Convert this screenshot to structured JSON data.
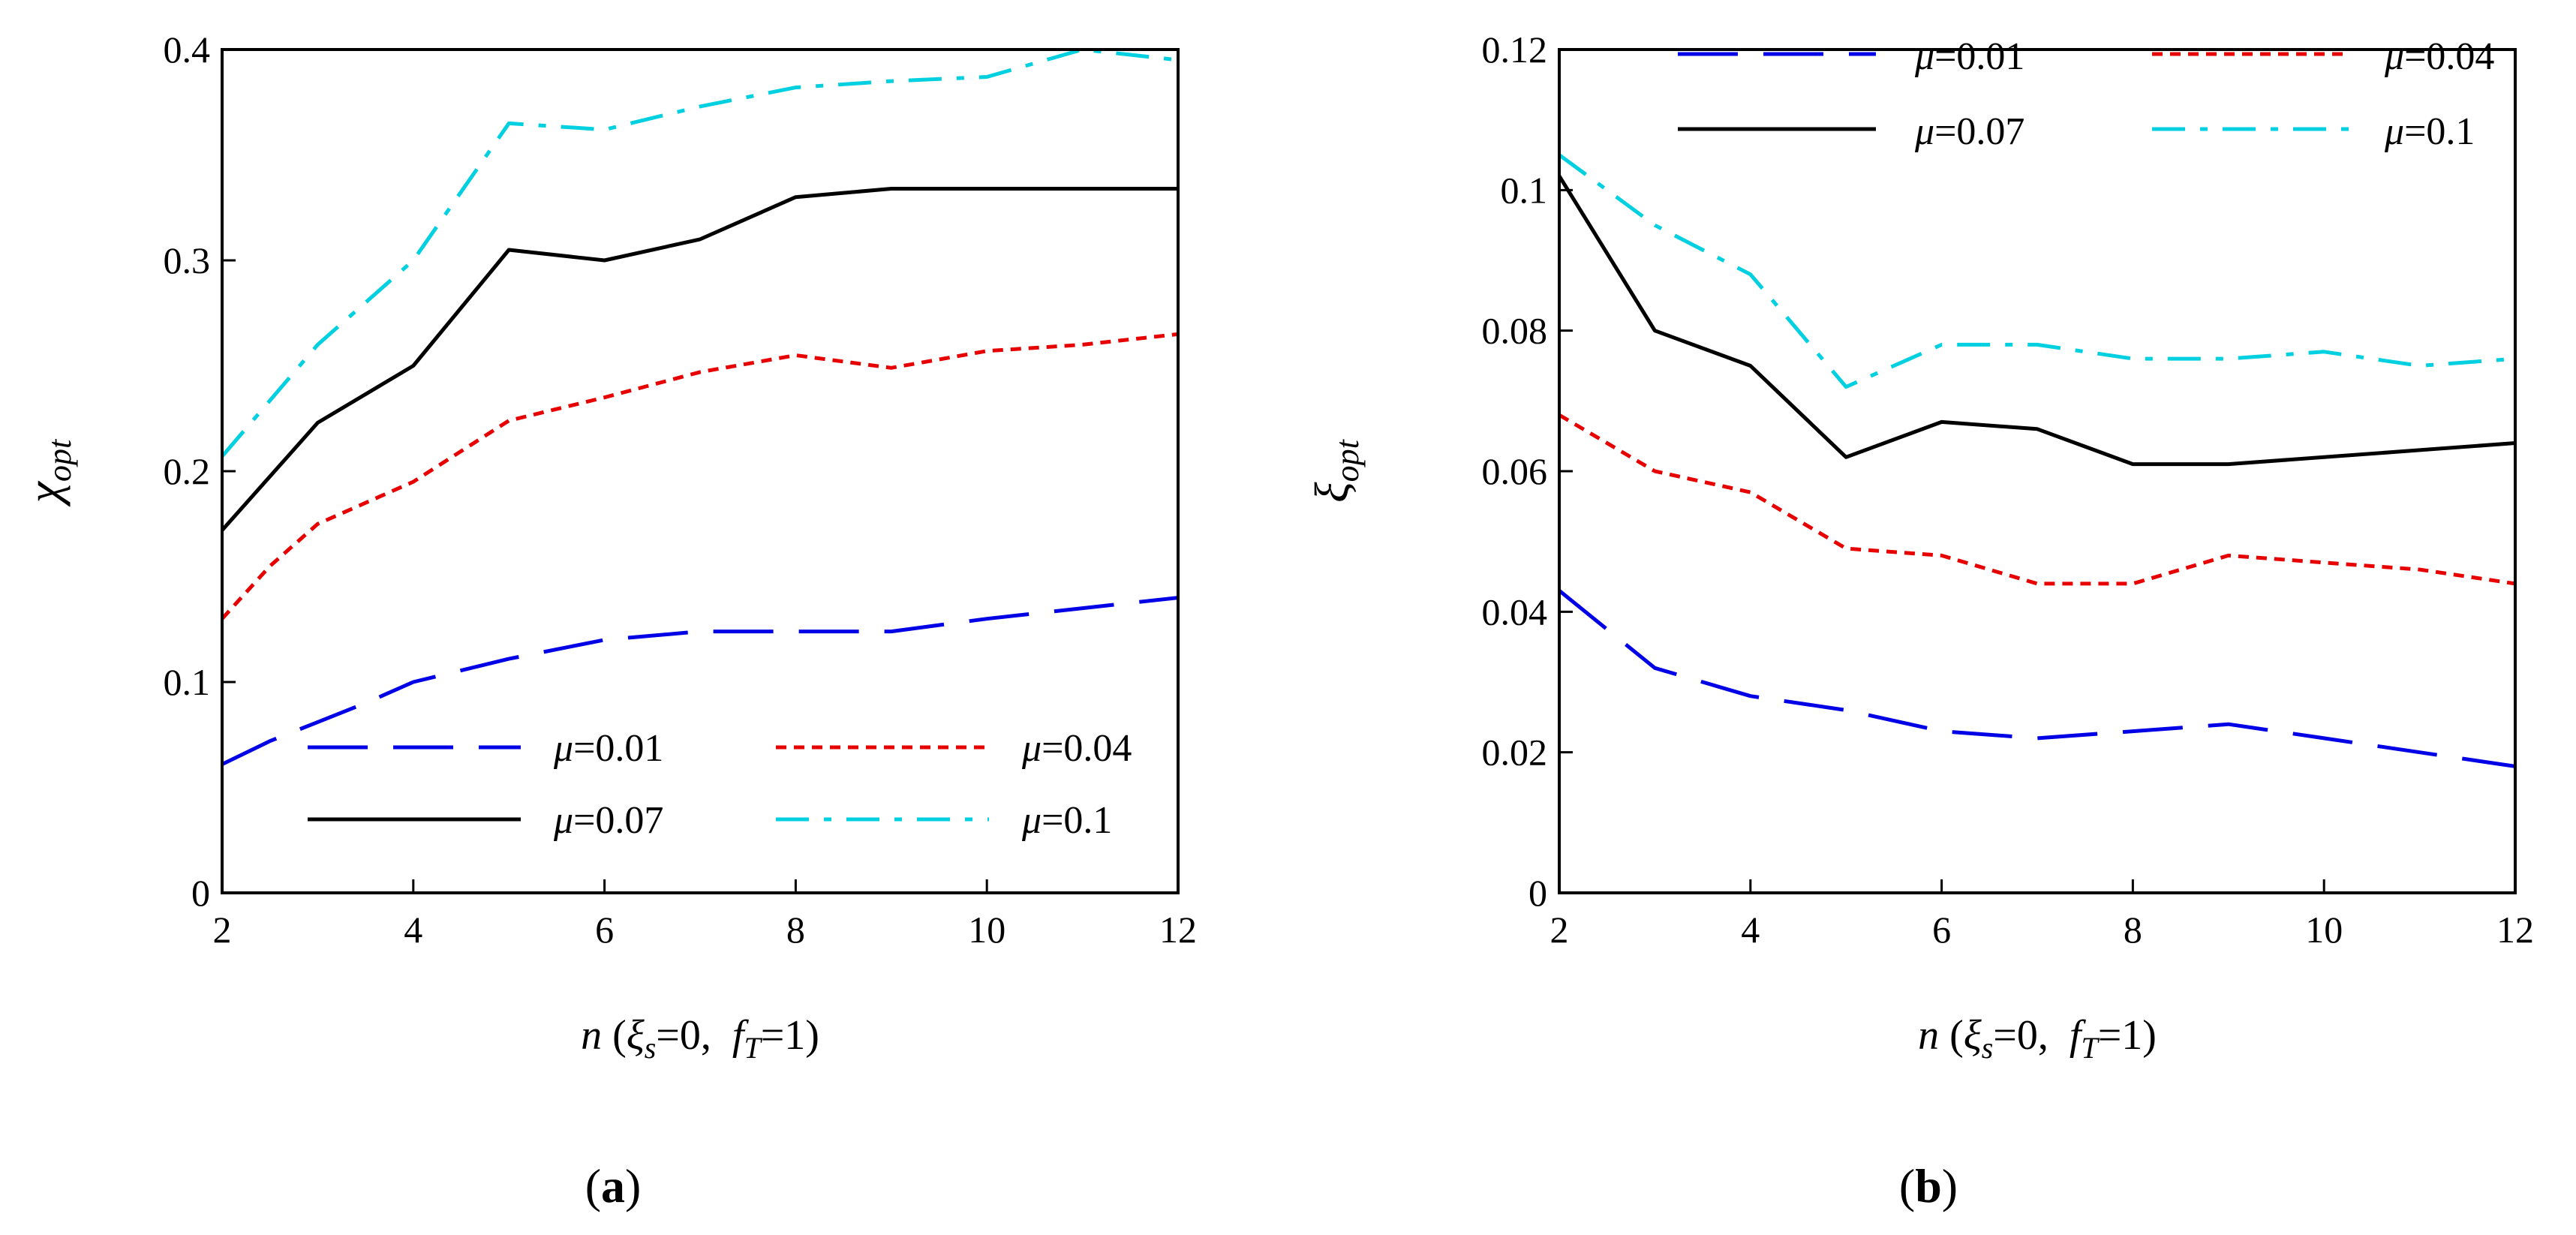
{
  "chart_data": [
    {
      "type": "line",
      "panel_label": "a",
      "ylabel_symbol": "χ",
      "ylabel_sub": "opt",
      "xlabel_parts": {
        "n": "n",
        "open": " (",
        "xi": "ξ",
        "xi_sub": "s",
        "xi_eq": "=0,",
        "f": "f",
        "f_sub": "T",
        "f_eq": "=1)"
      },
      "xlim": [
        2,
        12
      ],
      "ylim": [
        0,
        0.4
      ],
      "xticks": [
        2,
        4,
        6,
        8,
        10,
        12
      ],
      "yticks": [
        0,
        0.1,
        0.2,
        0.3,
        0.4
      ],
      "ytick_labels": [
        "0",
        "0.1",
        "0.2",
        "0.3",
        "0.4"
      ],
      "legend_position": "lower-right",
      "series": [
        {
          "name": "μ=0.01",
          "mu_symbol": "μ",
          "mu_value": "=0.01",
          "color": "#0000e6",
          "dash": "long",
          "x": [
            2,
            2.5,
            3,
            3.5,
            4,
            5,
            6,
            7,
            8,
            9,
            10,
            11,
            12
          ],
          "y": [
            0.061,
            0.072,
            0.081,
            0.09,
            0.1,
            0.111,
            0.12,
            0.124,
            0.124,
            0.124,
            0.13,
            0.135,
            0.14
          ]
        },
        {
          "name": "μ=0.04",
          "mu_symbol": "μ",
          "mu_value": "=0.04",
          "color": "#e60000",
          "dash": "short",
          "x": [
            2,
            2.5,
            3,
            3.5,
            4,
            5,
            6,
            7,
            8,
            9,
            10,
            11,
            12
          ],
          "y": [
            0.13,
            0.155,
            0.175,
            0.185,
            0.195,
            0.224,
            0.235,
            0.247,
            0.255,
            0.249,
            0.257,
            0.26,
            0.265
          ]
        },
        {
          "name": "μ=0.07",
          "mu_symbol": "μ",
          "mu_value": "=0.07",
          "color": "#000000",
          "dash": "solid",
          "x": [
            2,
            3,
            4,
            5,
            6,
            7,
            8,
            9,
            10,
            11,
            12
          ],
          "y": [
            0.172,
            0.223,
            0.25,
            0.305,
            0.3,
            0.31,
            0.33,
            0.334,
            0.334,
            0.334,
            0.334
          ]
        },
        {
          "name": "μ=0.1",
          "mu_symbol": "μ",
          "mu_value": "=0.1",
          "color": "#00d0e0",
          "dash": "dashdot",
          "x": [
            2,
            3,
            4,
            5,
            6,
            7,
            8,
            9,
            10,
            11,
            12
          ],
          "y": [
            0.207,
            0.26,
            0.3,
            0.365,
            0.362,
            0.373,
            0.382,
            0.385,
            0.387,
            0.4,
            0.395
          ]
        }
      ]
    },
    {
      "type": "line",
      "panel_label": "b",
      "ylabel_symbol": "ξ",
      "ylabel_sub": "opt",
      "xlabel_parts": {
        "n": "n",
        "open": " (",
        "xi": "ξ",
        "xi_sub": "s",
        "xi_eq": "=0,",
        "f": "f",
        "f_sub": "T",
        "f_eq": "=1)"
      },
      "xlim": [
        2,
        12
      ],
      "ylim": [
        0,
        0.12
      ],
      "xticks": [
        2,
        4,
        6,
        8,
        10,
        12
      ],
      "yticks": [
        0,
        0.02,
        0.04,
        0.06,
        0.08,
        0.1,
        0.12
      ],
      "ytick_labels": [
        "0",
        "0.02",
        "0.04",
        "0.06",
        "0.08",
        "0.1",
        "0.12"
      ],
      "legend_position": "top",
      "series": [
        {
          "name": "μ=0.01",
          "mu_symbol": "μ",
          "mu_value": "=0.01",
          "color": "#0000e6",
          "dash": "long",
          "x": [
            2,
            3,
            4,
            5,
            6,
            7,
            8,
            9,
            10,
            11,
            12
          ],
          "y": [
            0.043,
            0.032,
            0.028,
            0.026,
            0.023,
            0.022,
            0.023,
            0.024,
            0.022,
            0.02,
            0.018
          ]
        },
        {
          "name": "μ=0.04",
          "mu_symbol": "μ",
          "mu_value": "=0.04",
          "color": "#e60000",
          "dash": "short",
          "x": [
            2,
            3,
            4,
            5,
            6,
            7,
            8,
            9,
            10,
            11,
            12
          ],
          "y": [
            0.068,
            0.06,
            0.057,
            0.049,
            0.048,
            0.044,
            0.044,
            0.048,
            0.047,
            0.046,
            0.044
          ]
        },
        {
          "name": "μ=0.07",
          "mu_symbol": "μ",
          "mu_value": "=0.07",
          "color": "#000000",
          "dash": "solid",
          "x": [
            2,
            3,
            4,
            5,
            6,
            7,
            8,
            9,
            10,
            11,
            12
          ],
          "y": [
            0.102,
            0.08,
            0.075,
            0.062,
            0.067,
            0.066,
            0.061,
            0.061,
            0.062,
            0.063,
            0.064
          ]
        },
        {
          "name": "μ=0.1",
          "mu_symbol": "μ",
          "mu_value": "=0.1",
          "color": "#00d0e0",
          "dash": "dashdot",
          "x": [
            2,
            3,
            4,
            5,
            6,
            7,
            8,
            9,
            10,
            11,
            12
          ],
          "y": [
            0.105,
            0.095,
            0.088,
            0.072,
            0.078,
            0.078,
            0.076,
            0.076,
            0.077,
            0.075,
            0.076
          ]
        }
      ]
    }
  ]
}
